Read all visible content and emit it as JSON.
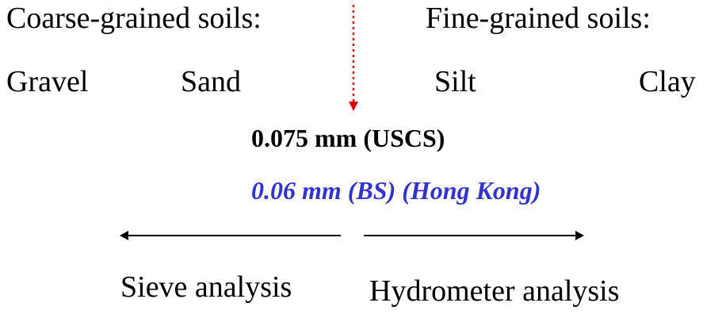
{
  "headings": {
    "coarse": "Coarse-grained soils:",
    "fine": "Fine-grained soils:"
  },
  "soil_types": [
    "Gravel",
    "Sand",
    "Silt",
    "Clay"
  ],
  "boundary": {
    "uscs": "0.075 mm (USCS)",
    "bs": "0.06 mm (BS) (Hong Kong)"
  },
  "analysis": {
    "sieve": "Sieve analysis",
    "hydrometer": "Hydrometer analysis"
  },
  "colors": {
    "divider": "#e00000",
    "bs_label": "#3333cc",
    "text": "#000000"
  }
}
